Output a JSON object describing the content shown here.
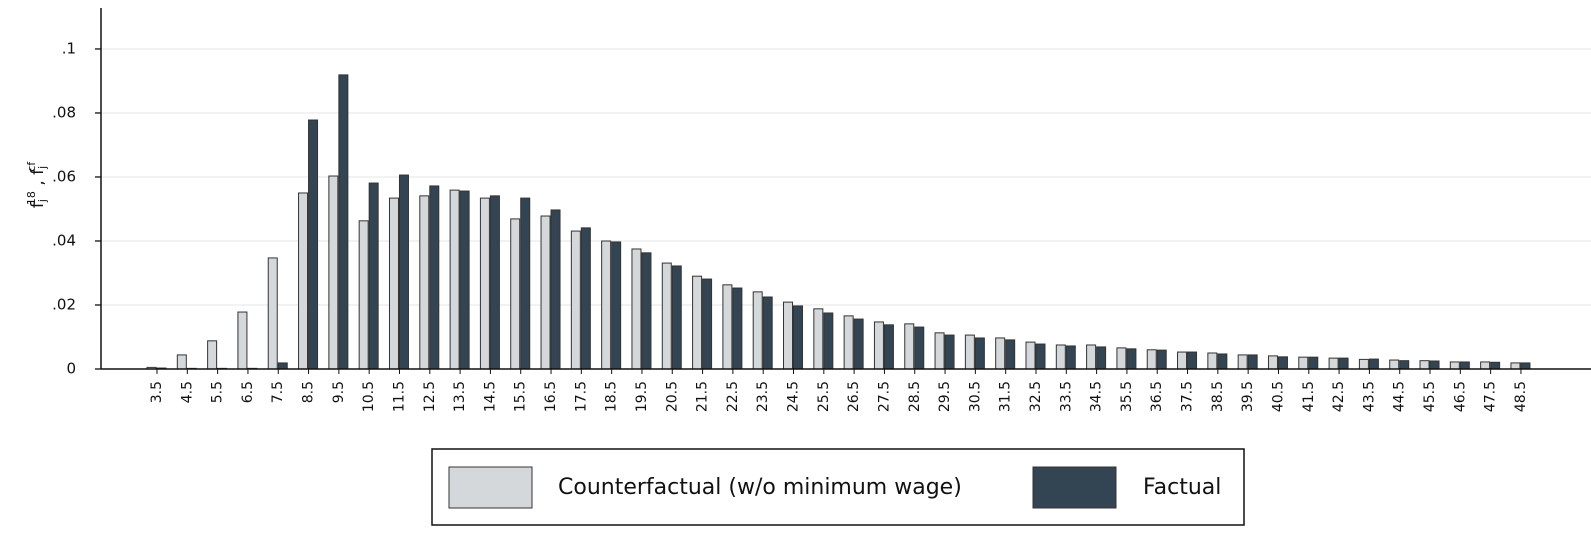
{
  "chart_data": {
    "type": "bar",
    "y_label": [
      "f",
      "j",
      "18",
      " , ",
      "f",
      "j",
      "cf"
    ],
    "categories": [
      "3.5",
      "4.5",
      "5.5",
      "6.5",
      "7.5",
      "8.5",
      "9.5",
      "10.5",
      "11.5",
      "12.5",
      "13.5",
      "14.5",
      "15.5",
      "16.5",
      "17.5",
      "18.5",
      "19.5",
      "20.5",
      "21.5",
      "22.5",
      "23.5",
      "24.5",
      "25.5",
      "26.5",
      "27.5",
      "28.5",
      "29.5",
      "30.5",
      "31.5",
      "32.5",
      "33.5",
      "34.5",
      "35.5",
      "36.5",
      "37.5",
      "38.5",
      "39.5",
      "40.5",
      "41.5",
      "42.5",
      "43.5",
      "44.5",
      "45.5",
      "46.5",
      "47.5",
      "48.5"
    ],
    "series": [
      {
        "name": "Counterfactual (w/o minimum wage)",
        "color": "#d4d8db",
        "values": [
          0.0005,
          0.0044,
          0.0088,
          0.0178,
          0.0347,
          0.055,
          0.0603,
          0.0463,
          0.0534,
          0.0541,
          0.0559,
          0.0534,
          0.0469,
          0.0478,
          0.0431,
          0.04,
          0.0375,
          0.0331,
          0.029,
          0.0263,
          0.0241,
          0.0209,
          0.0188,
          0.0166,
          0.0147,
          0.0141,
          0.0113,
          0.0106,
          0.0097,
          0.0084,
          0.0075,
          0.0075,
          0.0066,
          0.006,
          0.0053,
          0.005,
          0.0044,
          0.0041,
          0.0037,
          0.0034,
          0.003,
          0.0028,
          0.0026,
          0.0022,
          0.0022,
          0.0019
        ]
      },
      {
        "name": "Factual",
        "color": "#334552",
        "values": [
          0.0003,
          0.0002,
          0.0002,
          0.0002,
          0.0019,
          0.0778,
          0.0919,
          0.0581,
          0.0606,
          0.0572,
          0.0556,
          0.0541,
          0.0534,
          0.0497,
          0.0441,
          0.0397,
          0.0363,
          0.0322,
          0.0281,
          0.0253,
          0.0225,
          0.0197,
          0.0175,
          0.0156,
          0.0138,
          0.0131,
          0.0106,
          0.0097,
          0.0091,
          0.0078,
          0.0072,
          0.0069,
          0.0063,
          0.0059,
          0.0053,
          0.0047,
          0.0044,
          0.0038,
          0.0037,
          0.0034,
          0.0031,
          0.0026,
          0.0025,
          0.0022,
          0.0021,
          0.0019
        ]
      }
    ],
    "ylim": [
      0,
      0.1128
    ],
    "yticks": [
      0,
      {
        "value": 0.02,
        "label": ".02"
      },
      {
        "value": 0.04,
        "label": ".04"
      },
      {
        "value": 0.06,
        "label": ".06"
      },
      {
        "value": 0.08,
        "label": ".08"
      },
      {
        "value": 0.1,
        "label": ".1"
      }
    ],
    "grid": true
  }
}
